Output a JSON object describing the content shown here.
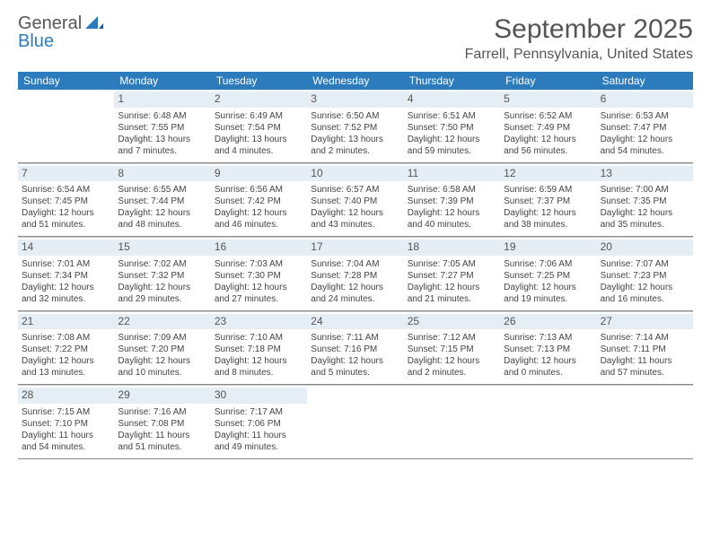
{
  "logo": {
    "word1": "General",
    "word2": "Blue"
  },
  "header": {
    "month_year": "September 2025",
    "location": "Farrell, Pennsylvania, United States"
  },
  "colors": {
    "header_bg": "#2b7bbd",
    "header_text": "#ffffff",
    "daynum_bg": "#e6eef5",
    "rule": "#888888",
    "body_text": "#444444",
    "title_text": "#555555"
  },
  "typography": {
    "title_size_pt": 22,
    "location_size_pt": 12,
    "dayhead_size_pt": 9,
    "cell_size_pt": 7
  },
  "day_names": [
    "Sunday",
    "Monday",
    "Tuesday",
    "Wednesday",
    "Thursday",
    "Friday",
    "Saturday"
  ],
  "weeks": [
    [
      {
        "blank": true
      },
      {
        "n": "1",
        "sunrise": "Sunrise: 6:48 AM",
        "sunset": "Sunset: 7:55 PM",
        "day1": "Daylight: 13 hours",
        "day2": "and 7 minutes."
      },
      {
        "n": "2",
        "sunrise": "Sunrise: 6:49 AM",
        "sunset": "Sunset: 7:54 PM",
        "day1": "Daylight: 13 hours",
        "day2": "and 4 minutes."
      },
      {
        "n": "3",
        "sunrise": "Sunrise: 6:50 AM",
        "sunset": "Sunset: 7:52 PM",
        "day1": "Daylight: 13 hours",
        "day2": "and 2 minutes."
      },
      {
        "n": "4",
        "sunrise": "Sunrise: 6:51 AM",
        "sunset": "Sunset: 7:50 PM",
        "day1": "Daylight: 12 hours",
        "day2": "and 59 minutes."
      },
      {
        "n": "5",
        "sunrise": "Sunrise: 6:52 AM",
        "sunset": "Sunset: 7:49 PM",
        "day1": "Daylight: 12 hours",
        "day2": "and 56 minutes."
      },
      {
        "n": "6",
        "sunrise": "Sunrise: 6:53 AM",
        "sunset": "Sunset: 7:47 PM",
        "day1": "Daylight: 12 hours",
        "day2": "and 54 minutes."
      }
    ],
    [
      {
        "n": "7",
        "sunrise": "Sunrise: 6:54 AM",
        "sunset": "Sunset: 7:45 PM",
        "day1": "Daylight: 12 hours",
        "day2": "and 51 minutes."
      },
      {
        "n": "8",
        "sunrise": "Sunrise: 6:55 AM",
        "sunset": "Sunset: 7:44 PM",
        "day1": "Daylight: 12 hours",
        "day2": "and 48 minutes."
      },
      {
        "n": "9",
        "sunrise": "Sunrise: 6:56 AM",
        "sunset": "Sunset: 7:42 PM",
        "day1": "Daylight: 12 hours",
        "day2": "and 46 minutes."
      },
      {
        "n": "10",
        "sunrise": "Sunrise: 6:57 AM",
        "sunset": "Sunset: 7:40 PM",
        "day1": "Daylight: 12 hours",
        "day2": "and 43 minutes."
      },
      {
        "n": "11",
        "sunrise": "Sunrise: 6:58 AM",
        "sunset": "Sunset: 7:39 PM",
        "day1": "Daylight: 12 hours",
        "day2": "and 40 minutes."
      },
      {
        "n": "12",
        "sunrise": "Sunrise: 6:59 AM",
        "sunset": "Sunset: 7:37 PM",
        "day1": "Daylight: 12 hours",
        "day2": "and 38 minutes."
      },
      {
        "n": "13",
        "sunrise": "Sunrise: 7:00 AM",
        "sunset": "Sunset: 7:35 PM",
        "day1": "Daylight: 12 hours",
        "day2": "and 35 minutes."
      }
    ],
    [
      {
        "n": "14",
        "sunrise": "Sunrise: 7:01 AM",
        "sunset": "Sunset: 7:34 PM",
        "day1": "Daylight: 12 hours",
        "day2": "and 32 minutes."
      },
      {
        "n": "15",
        "sunrise": "Sunrise: 7:02 AM",
        "sunset": "Sunset: 7:32 PM",
        "day1": "Daylight: 12 hours",
        "day2": "and 29 minutes."
      },
      {
        "n": "16",
        "sunrise": "Sunrise: 7:03 AM",
        "sunset": "Sunset: 7:30 PM",
        "day1": "Daylight: 12 hours",
        "day2": "and 27 minutes."
      },
      {
        "n": "17",
        "sunrise": "Sunrise: 7:04 AM",
        "sunset": "Sunset: 7:28 PM",
        "day1": "Daylight: 12 hours",
        "day2": "and 24 minutes."
      },
      {
        "n": "18",
        "sunrise": "Sunrise: 7:05 AM",
        "sunset": "Sunset: 7:27 PM",
        "day1": "Daylight: 12 hours",
        "day2": "and 21 minutes."
      },
      {
        "n": "19",
        "sunrise": "Sunrise: 7:06 AM",
        "sunset": "Sunset: 7:25 PM",
        "day1": "Daylight: 12 hours",
        "day2": "and 19 minutes."
      },
      {
        "n": "20",
        "sunrise": "Sunrise: 7:07 AM",
        "sunset": "Sunset: 7:23 PM",
        "day1": "Daylight: 12 hours",
        "day2": "and 16 minutes."
      }
    ],
    [
      {
        "n": "21",
        "sunrise": "Sunrise: 7:08 AM",
        "sunset": "Sunset: 7:22 PM",
        "day1": "Daylight: 12 hours",
        "day2": "and 13 minutes."
      },
      {
        "n": "22",
        "sunrise": "Sunrise: 7:09 AM",
        "sunset": "Sunset: 7:20 PM",
        "day1": "Daylight: 12 hours",
        "day2": "and 10 minutes."
      },
      {
        "n": "23",
        "sunrise": "Sunrise: 7:10 AM",
        "sunset": "Sunset: 7:18 PM",
        "day1": "Daylight: 12 hours",
        "day2": "and 8 minutes."
      },
      {
        "n": "24",
        "sunrise": "Sunrise: 7:11 AM",
        "sunset": "Sunset: 7:16 PM",
        "day1": "Daylight: 12 hours",
        "day2": "and 5 minutes."
      },
      {
        "n": "25",
        "sunrise": "Sunrise: 7:12 AM",
        "sunset": "Sunset: 7:15 PM",
        "day1": "Daylight: 12 hours",
        "day2": "and 2 minutes."
      },
      {
        "n": "26",
        "sunrise": "Sunrise: 7:13 AM",
        "sunset": "Sunset: 7:13 PM",
        "day1": "Daylight: 12 hours",
        "day2": "and 0 minutes."
      },
      {
        "n": "27",
        "sunrise": "Sunrise: 7:14 AM",
        "sunset": "Sunset: 7:11 PM",
        "day1": "Daylight: 11 hours",
        "day2": "and 57 minutes."
      }
    ],
    [
      {
        "n": "28",
        "sunrise": "Sunrise: 7:15 AM",
        "sunset": "Sunset: 7:10 PM",
        "day1": "Daylight: 11 hours",
        "day2": "and 54 minutes."
      },
      {
        "n": "29",
        "sunrise": "Sunrise: 7:16 AM",
        "sunset": "Sunset: 7:08 PM",
        "day1": "Daylight: 11 hours",
        "day2": "and 51 minutes."
      },
      {
        "n": "30",
        "sunrise": "Sunrise: 7:17 AM",
        "sunset": "Sunset: 7:06 PM",
        "day1": "Daylight: 11 hours",
        "day2": "and 49 minutes."
      },
      {
        "blank": true
      },
      {
        "blank": true
      },
      {
        "blank": true
      },
      {
        "blank": true
      }
    ]
  ]
}
